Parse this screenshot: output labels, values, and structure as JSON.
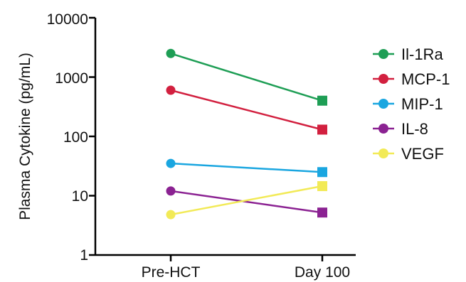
{
  "chart_data": {
    "type": "line",
    "yscale": "log",
    "ylim": [
      1,
      10000
    ],
    "ylabel": "Plasma Cytokine (pg/mL)",
    "xlabel": "",
    "categories": [
      "Pre-HCT",
      "Day 100"
    ],
    "ytick_labels": [
      "1",
      "10",
      "100",
      "1000",
      "10000"
    ],
    "yticks": [
      1,
      10,
      100,
      1000,
      10000
    ],
    "legend_position": "right",
    "series": [
      {
        "name": "Il-1Ra",
        "color": "#1e9e55",
        "values": [
          2500,
          400
        ]
      },
      {
        "name": "MCP-1",
        "color": "#d2203f",
        "values": [
          600,
          130
        ]
      },
      {
        "name": "MIP-1",
        "color": "#1aa6e0",
        "values": [
          35,
          25
        ]
      },
      {
        "name": "IL-8",
        "color": "#8b2292",
        "values": [
          12,
          5.2
        ]
      },
      {
        "name": "VEGF",
        "color": "#f2ea57",
        "values": [
          4.8,
          14.5
        ]
      }
    ]
  }
}
